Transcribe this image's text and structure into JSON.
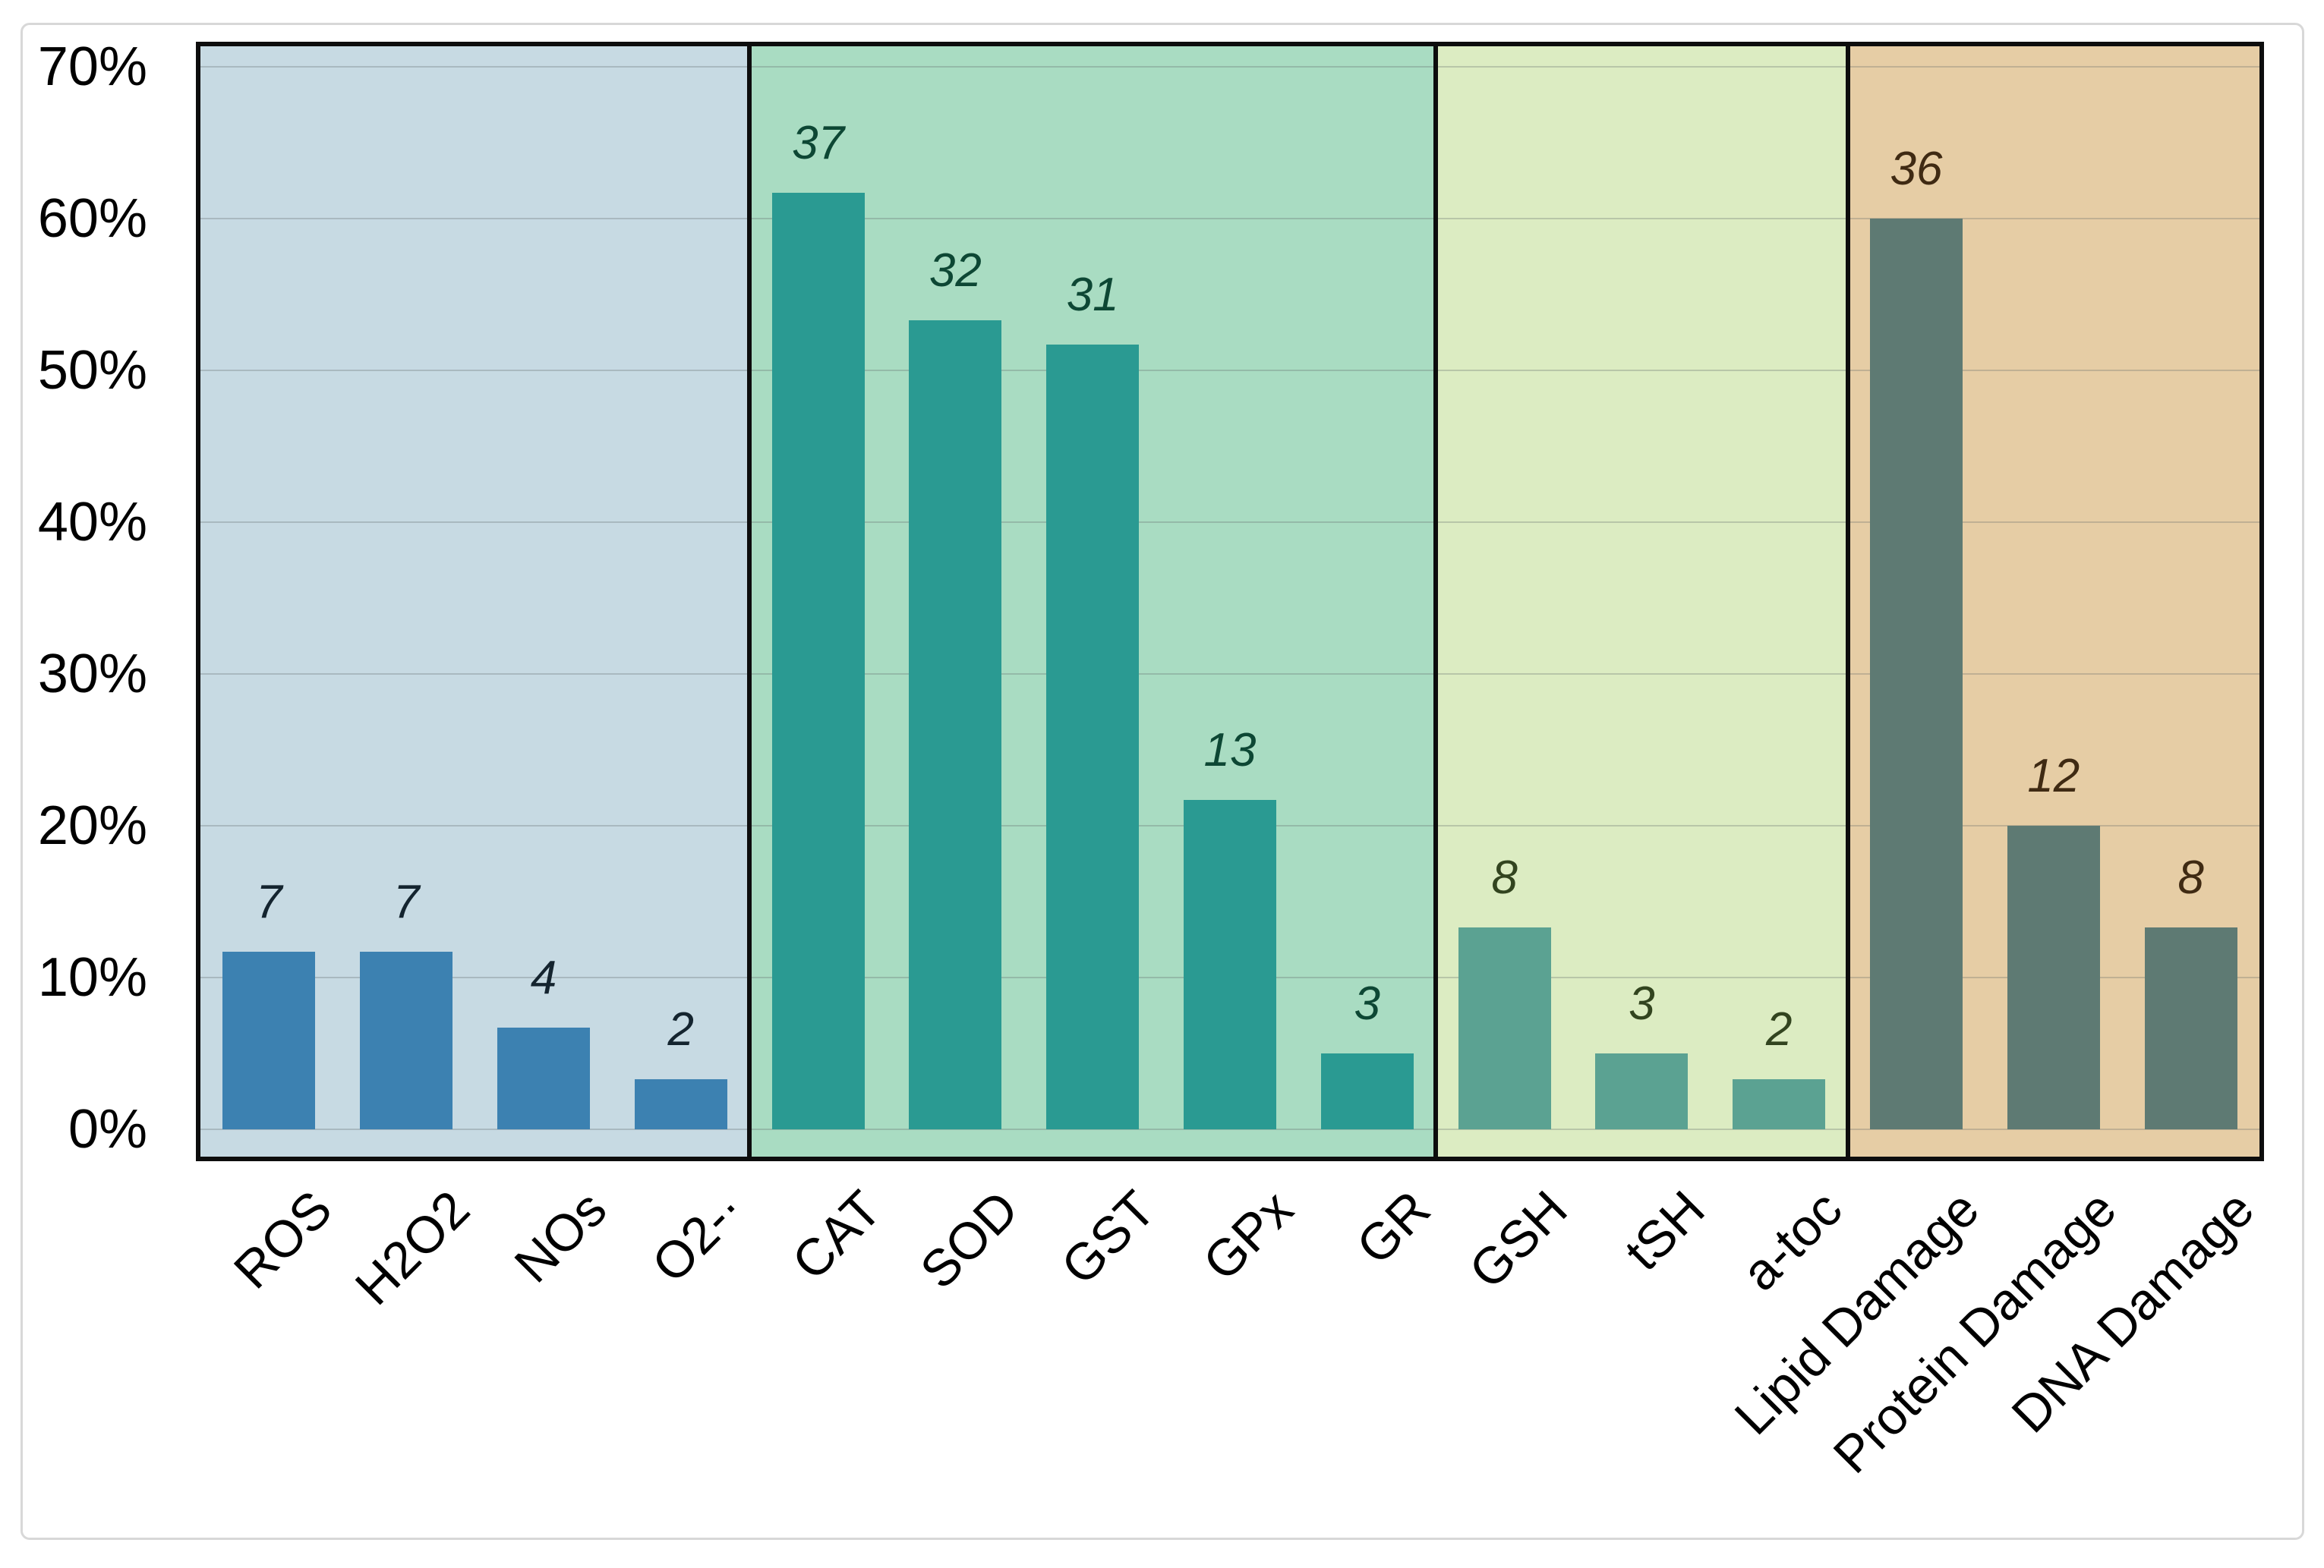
{
  "figure": {
    "background": "#ffffff",
    "frame_border_color": "#d8d8d8",
    "plot_border_color": "#0d0d0d",
    "grid_color": "rgba(95,102,102,0.28)",
    "axis_text_color": "#000000"
  },
  "chart_data": {
    "type": "bar",
    "title": "",
    "xlabel": "",
    "ylabel": "",
    "y_axis": {
      "unit": "%",
      "min_pct": 0,
      "max_pct": 70,
      "tick_step_pct": 10,
      "tick_labels": [
        "0%",
        "10%",
        "20%",
        "30%",
        "40%",
        "50%",
        "60%",
        "70%"
      ],
      "gridlines": true
    },
    "legend": "none",
    "groups": [
      {
        "name": "reactive-species",
        "panel_bg": "#c7dae3",
        "bar_color": "#3c81b1",
        "value_label_color": "#14242f",
        "bars": [
          {
            "label": "ROS",
            "value": 7,
            "height_pct": 11.7
          },
          {
            "label": "H2O2",
            "value": 7,
            "height_pct": 11.7
          },
          {
            "label": "NOs",
            "value": 4,
            "height_pct": 6.7
          },
          {
            "label": "O2-·",
            "value": 2,
            "height_pct": 3.3
          }
        ]
      },
      {
        "name": "antioxidant-enzymes",
        "panel_bg": "#a9dcc2",
        "bar_color": "#2a9a92",
        "value_label_color": "#0d4734",
        "bars": [
          {
            "label": "CAT",
            "value": 37,
            "height_pct": 61.7
          },
          {
            "label": "SOD",
            "value": 32,
            "height_pct": 53.3
          },
          {
            "label": "GST",
            "value": 31,
            "height_pct": 51.7
          },
          {
            "label": "GPx",
            "value": 13,
            "height_pct": 21.7
          },
          {
            "label": "GR",
            "value": 3,
            "height_pct": 5.0
          }
        ]
      },
      {
        "name": "non-enzymatic-antioxidants",
        "panel_bg": "#dcecc2",
        "bar_color": "#5ba292",
        "value_label_color": "#32441f",
        "bars": [
          {
            "label": "GSH",
            "value": 8,
            "height_pct": 13.3
          },
          {
            "label": "tSH",
            "value": 3,
            "height_pct": 5.0
          },
          {
            "label": "a-toc",
            "value": 2,
            "height_pct": 3.3
          }
        ]
      },
      {
        "name": "damage-markers",
        "panel_bg": "#e6cda5",
        "bar_color": "#5e7a73",
        "value_label_color": "#3f2a13",
        "bars": [
          {
            "label": "Lipid Damage",
            "value": 36,
            "height_pct": 60.0
          },
          {
            "label": "Protein Damage",
            "value": 12,
            "height_pct": 20.0
          },
          {
            "label": "DNA Damage",
            "value": 8,
            "height_pct": 13.3
          }
        ]
      }
    ]
  }
}
